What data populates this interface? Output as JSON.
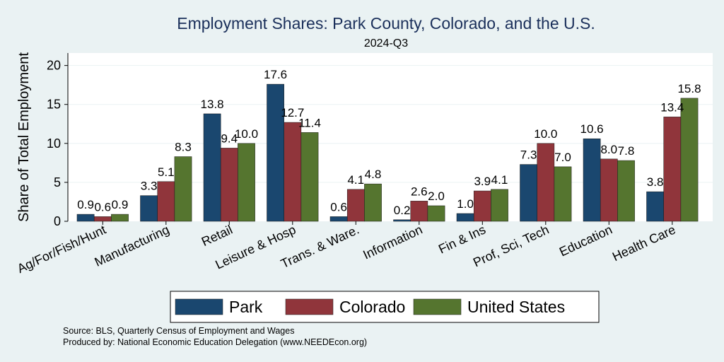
{
  "chart_data": {
    "type": "bar",
    "title": "Employment Shares: Park County, Colorado, and the U.S.",
    "subtitle": "2024-Q3",
    "xlabel": "",
    "ylabel": "Share of Total Employment",
    "ylim": [
      0,
      21.6
    ],
    "yticks": [
      0,
      5,
      10,
      15,
      20
    ],
    "grid": true,
    "legend_position": "bottom",
    "categories": [
      "Ag/For/Fish/Hunt",
      "Manufacturing",
      "Retail",
      "Leisure & Hosp",
      "Trans. & Ware.",
      "Information",
      "Fin & Ins",
      "Prof, Sci, Tech",
      "Education",
      "Health Care"
    ],
    "series": [
      {
        "name": "Park",
        "color": "#1a476f",
        "values": [
          0.9,
          3.3,
          13.8,
          17.6,
          0.6,
          0.2,
          1.0,
          7.3,
          10.6,
          3.8
        ]
      },
      {
        "name": "Colorado",
        "color": "#90353b",
        "values": [
          0.6,
          5.1,
          9.4,
          12.7,
          4.1,
          2.6,
          3.9,
          10.0,
          8.0,
          13.4
        ]
      },
      {
        "name": "United States",
        "color": "#55752f",
        "values": [
          0.9,
          8.3,
          10.0,
          11.4,
          4.8,
          2.0,
          4.1,
          7.0,
          7.8,
          15.8
        ]
      }
    ]
  },
  "notes": {
    "source": "Source: BLS, Quarterly Census of Employment and Wages",
    "produced": "Produced by: National Economic Education Delegation (www.NEEDEcon.org)"
  }
}
